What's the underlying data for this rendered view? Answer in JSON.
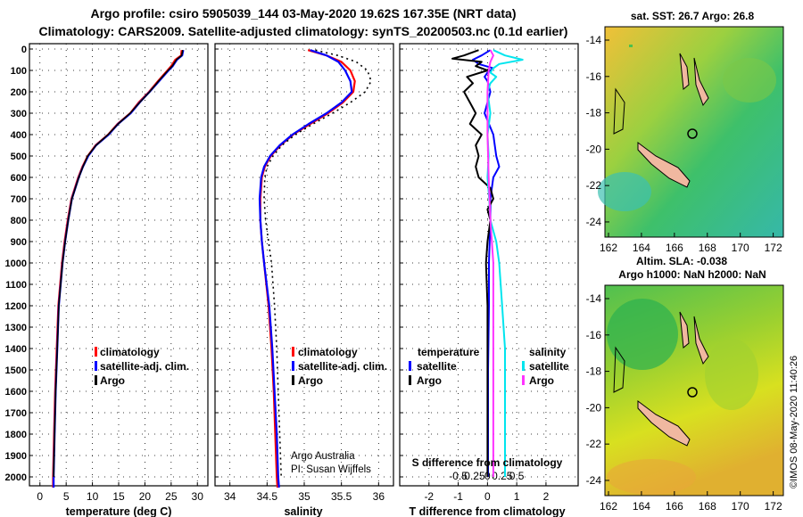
{
  "header": {
    "line1": "Argo profile: csiro 5905039_144 03-May-2020 19.62S 167.35E (NRT data)",
    "line2": "Climatology: CARS2009. Satellite-adjusted climatology: synTS_20200503.nc (0.1d earlier)"
  },
  "colors": {
    "climatology": "#ff0000",
    "satellite": "#0000ff",
    "argo": "#000000",
    "sal_satellite": "#00e5ee",
    "sal_argo": "#ff33ff"
  },
  "chart_data": [
    {
      "type": "line",
      "id": "temperature",
      "xlabel": "temperature (deg C)",
      "ylabel": "depth",
      "xlim": [
        -2,
        32
      ],
      "ylim": [
        2060,
        0
      ],
      "x_ticks": [
        0,
        5,
        10,
        15,
        20,
        25,
        30
      ],
      "y_ticks": [
        0,
        100,
        200,
        300,
        400,
        500,
        600,
        700,
        800,
        900,
        1000,
        1100,
        1200,
        1300,
        1400,
        1500,
        1600,
        1700,
        1800,
        1900,
        2000
      ],
      "legend": {
        "items": [
          "climatology",
          "satellite-adj. clim.",
          "Argo"
        ],
        "placement": "lower-right"
      },
      "series": [
        {
          "name": "climatology",
          "color": "#ff0000",
          "depth": [
            5,
            30,
            50,
            80,
            100,
            150,
            200,
            250,
            300,
            350,
            400,
            450,
            500,
            550,
            600,
            700,
            800,
            900,
            1000,
            1200,
            1400,
            1600,
            1800,
            2000,
            2050
          ],
          "values": [
            27.0,
            26.9,
            25.8,
            25.0,
            24.3,
            22.5,
            20.8,
            18.8,
            17.2,
            14.8,
            13.0,
            10.6,
            9.1,
            8.1,
            7.3,
            6.0,
            5.3,
            4.7,
            4.2,
            3.5,
            3.2,
            2.9,
            2.7,
            2.5,
            2.5
          ]
        },
        {
          "name": "satellite-adj. clim.",
          "color": "#0000ff",
          "depth": [
            5,
            30,
            50,
            80,
            100,
            150,
            200,
            250,
            300,
            350,
            400,
            450,
            500,
            550,
            600,
            700,
            800,
            900,
            1000,
            1200,
            1400,
            1600,
            1800,
            2000,
            2050
          ],
          "values": [
            27.3,
            27.1,
            26.1,
            25.3,
            24.5,
            22.7,
            20.9,
            19.0,
            17.3,
            14.9,
            13.1,
            10.7,
            9.2,
            8.2,
            7.4,
            6.1,
            5.4,
            4.8,
            4.3,
            3.6,
            3.3,
            3.0,
            2.8,
            2.6,
            2.6
          ]
        },
        {
          "name": "Argo",
          "color": "#000000",
          "depth": [
            5,
            30,
            50,
            80,
            100,
            150,
            200,
            250,
            300,
            350,
            400,
            450,
            500,
            550,
            600,
            700,
            800,
            900,
            1000,
            1200,
            1400,
            1600,
            1800,
            2000
          ],
          "values": [
            27.2,
            27.0,
            26.0,
            25.2,
            24.4,
            22.6,
            20.9,
            19.0,
            17.2,
            14.9,
            13.0,
            10.7,
            9.1,
            8.2,
            7.4,
            6.1,
            5.4,
            4.8,
            4.3,
            3.6,
            3.3,
            3.0,
            2.8,
            2.6
          ]
        }
      ]
    },
    {
      "type": "line",
      "id": "salinity",
      "xlabel": "salinity",
      "xlim": [
        33.8,
        36.2
      ],
      "ylim": [
        2060,
        0
      ],
      "x_ticks": [
        34,
        34.5,
        35,
        35.5,
        36
      ],
      "legend": {
        "items": [
          "climatology",
          "satellite-adj. clim.",
          "Argo"
        ],
        "placement": "lower-right"
      },
      "annotation": [
        "Argo Australia",
        "PI: Susan Wijffels"
      ],
      "series": [
        {
          "name": "climatology",
          "color": "#ff0000",
          "depth": [
            5,
            30,
            60,
            100,
            150,
            200,
            250,
            300,
            350,
            400,
            450,
            500,
            550,
            600,
            700,
            800,
            900,
            1000,
            1200,
            1400,
            1600,
            1800,
            2000,
            2050
          ],
          "values": [
            35.05,
            35.3,
            35.5,
            35.62,
            35.68,
            35.66,
            35.52,
            35.32,
            35.08,
            34.85,
            34.68,
            34.55,
            34.47,
            34.43,
            34.41,
            34.41,
            34.43,
            34.46,
            34.52,
            34.56,
            34.59,
            34.61,
            34.63,
            34.64
          ]
        },
        {
          "name": "satellite-adj. clim.",
          "color": "#0000ff",
          "depth": [
            5,
            30,
            60,
            100,
            150,
            200,
            250,
            300,
            350,
            400,
            450,
            500,
            550,
            600,
            700,
            800,
            900,
            1000,
            1200,
            1400,
            1600,
            1800,
            2000,
            2050
          ],
          "values": [
            35.08,
            35.3,
            35.46,
            35.55,
            35.62,
            35.64,
            35.5,
            35.3,
            35.06,
            34.84,
            34.67,
            34.54,
            34.46,
            34.42,
            34.4,
            34.41,
            34.43,
            34.46,
            34.53,
            34.57,
            34.6,
            34.63,
            34.65,
            34.66
          ]
        },
        {
          "name": "Argo",
          "color": "#000000",
          "depth": [
            5,
            30,
            60,
            100,
            150,
            200,
            250,
            300,
            350,
            400,
            450,
            500,
            550,
            600,
            700,
            800,
            900,
            1000,
            1200,
            1400,
            1600,
            1800,
            2000
          ],
          "values": [
            35.15,
            35.45,
            35.7,
            35.85,
            35.9,
            35.82,
            35.62,
            35.38,
            35.12,
            34.88,
            34.7,
            34.58,
            34.5,
            34.47,
            34.46,
            34.48,
            34.52,
            34.56,
            34.6,
            34.63,
            34.65,
            34.67,
            34.69
          ]
        }
      ]
    },
    {
      "type": "line",
      "id": "difference",
      "xlabel": "T difference from climatology",
      "sublabel": "S difference from climatology",
      "xlim": [
        -3,
        3.1
      ],
      "ylim": [
        2060,
        0
      ],
      "x_ticks": [
        -2,
        -1,
        0,
        1,
        2
      ],
      "s_ticks": [
        -0.5,
        -0.25,
        0,
        0.25,
        0.5
      ],
      "legend": {
        "temperature_header": "temperature",
        "salinity_header": "salinity",
        "items": [
          "satellite",
          "Argo",
          "satellite",
          "Argo"
        ],
        "placement": "lower"
      },
      "series": [
        {
          "name": "T satellite",
          "color": "#0000ff",
          "depth": [
            5,
            30,
            50,
            70,
            90,
            110,
            130,
            150,
            200,
            300,
            400,
            500,
            550,
            600,
            700,
            800,
            1000,
            1200,
            1500,
            1800,
            2000
          ],
          "values": [
            0.1,
            -0.2,
            -0.5,
            -0.3,
            0.2,
            0.0,
            -0.1,
            0.0,
            0.1,
            -0.1,
            0.2,
            0.3,
            0.4,
            0.2,
            0.1,
            0.1,
            0.05,
            0.05,
            0.02,
            0.02,
            0.02
          ]
        },
        {
          "name": "T Argo",
          "color": "#000000",
          "depth": [
            5,
            30,
            45,
            60,
            80,
            100,
            130,
            160,
            200,
            250,
            300,
            350,
            400,
            450,
            500,
            550,
            600,
            650,
            700,
            750,
            800,
            900,
            1000,
            1200,
            1400,
            1600,
            1800,
            2000
          ],
          "values": [
            -0.3,
            -0.8,
            -1.2,
            -0.2,
            -0.4,
            0.0,
            -0.7,
            -0.5,
            -0.8,
            -0.6,
            -0.4,
            -0.6,
            -0.2,
            -0.4,
            -0.3,
            -0.4,
            -0.3,
            0.1,
            0.2,
            0.0,
            0.1,
            0.0,
            -0.05,
            0.0,
            0.0,
            0.0,
            0.0,
            0.0
          ]
        },
        {
          "name": "S satellite",
          "color": "#00e5ee",
          "depth": [
            5,
            30,
            50,
            70,
            90,
            110,
            130,
            160,
            200,
            300,
            400,
            500,
            600,
            700,
            800,
            900,
            1000,
            1200,
            1400,
            1600,
            1800,
            2000
          ],
          "values": [
            0.1,
            0.3,
            0.6,
            0.2,
            0.1,
            0.05,
            0.15,
            0.05,
            0.0,
            0.05,
            0.0,
            0.02,
            0.0,
            0.03,
            0.05,
            0.15,
            0.2,
            0.25,
            0.3,
            0.3,
            0.3,
            0.3
          ]
        },
        {
          "name": "S Argo",
          "color": "#ff33ff",
          "depth": [
            5,
            30,
            60,
            100,
            200,
            400,
            600,
            800,
            1000,
            1200,
            1400,
            1600,
            1800,
            2000
          ],
          "values": [
            0.05,
            0.1,
            0.05,
            0.02,
            0.0,
            0.0,
            0.02,
            0.05,
            0.1,
            0.1,
            0.1,
            0.1,
            0.1,
            0.1
          ]
        }
      ]
    }
  ],
  "maps": [
    {
      "title": "sat. SST: 26.7 Argo: 26.8",
      "x_ticks": [
        "162",
        "164",
        "166",
        "168",
        "170",
        "172"
      ],
      "y_ticks": [
        "-14",
        "-16",
        "-18",
        "-20",
        "-22",
        "-24"
      ]
    },
    {
      "title": "Altim. SLA: -0.038",
      "title2": "Argo h1000: NaN h2000: NaN",
      "x_ticks": [
        "162",
        "164",
        "166",
        "168",
        "170",
        "172"
      ],
      "y_ticks": [
        "-14",
        "-16",
        "-18",
        "-20",
        "-22",
        "-24"
      ]
    }
  ],
  "credit": "©IMOS 08-May-2020 11:40:26"
}
